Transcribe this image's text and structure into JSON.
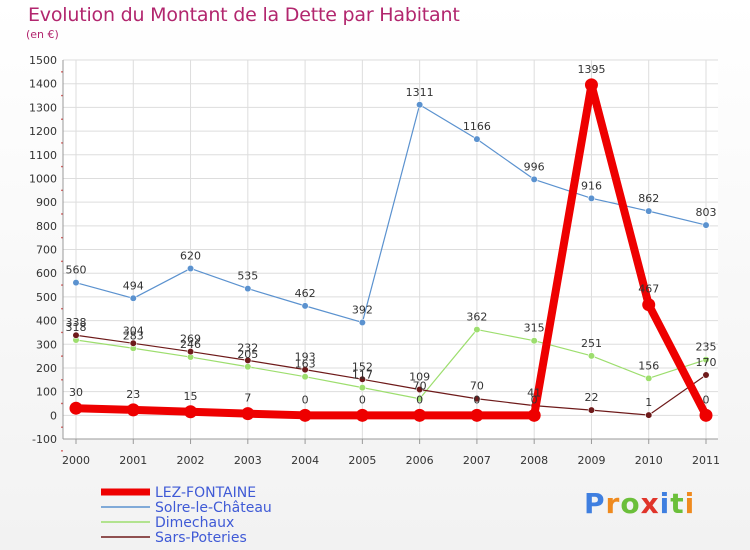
{
  "title": "Evolution du Montant de la Dette par Habitant",
  "subtitle": "(en €)",
  "brand": {
    "text": "Proxiti",
    "letter_colors": [
      "#3f7fe0",
      "#ef8a1e",
      "#6bbf3a",
      "#e0342a",
      "#3f7fe0",
      "#6bbf3a",
      "#ef8a1e"
    ]
  },
  "chart_data": {
    "type": "line",
    "x": [
      "2000",
      "2001",
      "2002",
      "2003",
      "2004",
      "2005",
      "2006",
      "2007",
      "2008",
      "2009",
      "2010",
      "2011"
    ],
    "ylim": [
      -100,
      1500
    ],
    "yticks": [
      -100,
      0,
      100,
      200,
      300,
      400,
      500,
      600,
      700,
      800,
      900,
      1000,
      1100,
      1200,
      1300,
      1400,
      1500
    ],
    "grid": true,
    "legend_position": "bottom-left",
    "series": [
      {
        "name": "Solre-le-Château",
        "color": "#5b92cf",
        "width": 1.2,
        "marker_r": 3.3,
        "values": [
          560,
          494,
          620,
          535,
          462,
          392,
          1311,
          1166,
          996,
          916,
          862,
          803
        ],
        "labels": [
          "560",
          "494",
          "620",
          "535",
          "462",
          "392",
          "1311",
          "1166",
          "996",
          "916",
          "862",
          "803"
        ]
      },
      {
        "name": "Dimechaux",
        "color": "#9dde6e",
        "width": 1.2,
        "marker_r": 3.3,
        "values": [
          318,
          283,
          246,
          205,
          163,
          117,
          70,
          362,
          315,
          251,
          156,
          235
        ],
        "labels": [
          "318",
          "283",
          "246",
          "205",
          "163",
          "117",
          "70",
          "362",
          "315",
          "251",
          "156",
          "235"
        ]
      },
      {
        "name": "Sars-Poteries",
        "color": "#6e1a1a",
        "width": 1.2,
        "marker_r": 3.3,
        "values": [
          338,
          304,
          269,
          232,
          193,
          152,
          109,
          70,
          41,
          22,
          1,
          170
        ],
        "labels": [
          "338",
          "304",
          "269",
          "232",
          "193",
          "152",
          "109",
          "70",
          "41",
          "22",
          "1",
          "170"
        ]
      },
      {
        "name": "LEZ-FONTAINE",
        "color": "#ee0000",
        "width": 8,
        "marker_r": 6.5,
        "values": [
          30,
          23,
          15,
          7,
          0,
          0,
          0,
          0,
          0,
          1395,
          467,
          0
        ],
        "labels": [
          "30",
          "23",
          "15",
          "7",
          "0",
          "0",
          "0",
          "0",
          "0",
          "1395",
          "467",
          "0"
        ]
      }
    ],
    "legend_order": [
      "LEZ-FONTAINE",
      "Solre-le-Château",
      "Dimechaux",
      "Sars-Poteries"
    ]
  }
}
